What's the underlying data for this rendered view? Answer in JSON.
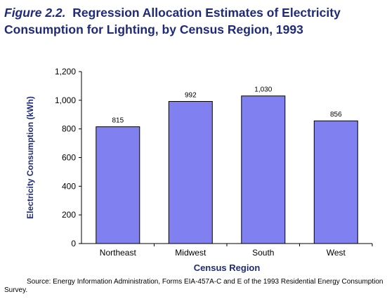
{
  "title": {
    "figure_label": "Figure 2.2.",
    "text": "Regression Allocation Estimates of Electricity Consumption for Lighting, by Census Region, 1993"
  },
  "source": "Source:  Energy Information Administration, Forms EIA-457A-C and E of the 1993 Residential Energy Consumption Survey.",
  "chart_data": {
    "type": "bar",
    "title": "Regression Allocation Estimates of Electricity Consumption for Lighting, by Census Region, 1993",
    "xlabel": "Census Region",
    "ylabel": "Electricity Consumption (kWh)",
    "categories": [
      "Northeast",
      "Midwest",
      "South",
      "West"
    ],
    "values": [
      815,
      992,
      1030,
      856
    ],
    "value_labels": [
      "815",
      "992",
      "1,030",
      "856"
    ],
    "ylim": [
      0,
      1200
    ],
    "yticks": [
      0,
      200,
      400,
      600,
      800,
      1000,
      1200
    ],
    "ytick_labels": [
      "0",
      "200",
      "400",
      "600",
      "800",
      "1,000",
      "1,200"
    ],
    "grid": false,
    "legend": "none",
    "bar_color": "#8080f0",
    "title_color": "#1f2a7a"
  }
}
